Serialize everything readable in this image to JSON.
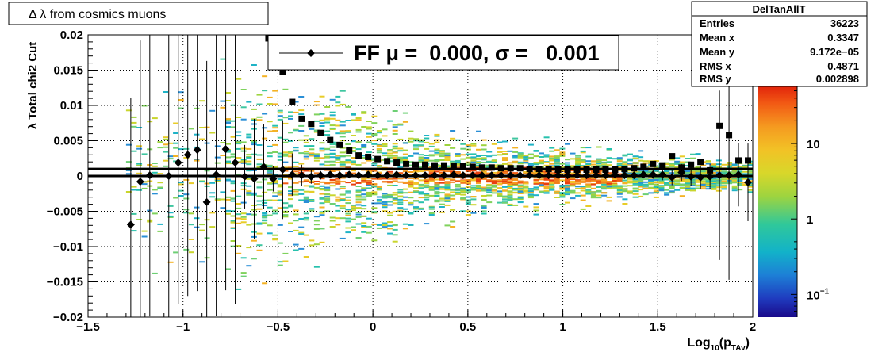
{
  "title": "Δ λ from cosmics muons",
  "stats_box": {
    "name": "DelTanAllT",
    "rows": [
      {
        "label": "Entries",
        "value": "36223"
      },
      {
        "label": "Mean x",
        "value": "0.3347"
      },
      {
        "label": "Mean y",
        "value": "9.172e−05"
      },
      {
        "label": "RMS x",
        "value": "0.4871"
      },
      {
        "label": "RMS y",
        "value": "0.002898"
      }
    ]
  },
  "legend": {
    "text": "FF μ =  0.000, σ =   0.001"
  },
  "colors": {
    "frame": "#000000",
    "square_markers": "#000000",
    "diamond_markers": "#000000",
    "grid": "#000000"
  },
  "chart_data": {
    "type": "heatmap",
    "title": "Δ λ from cosmics muons",
    "xlabel": "Log10(pTAv)",
    "xlabel_parts": {
      "main": "Log",
      "sub1": "10",
      "mid": "(p",
      "sub2": "TAv",
      "end": ")"
    },
    "ylabel": "λ  Total chi2 Cut",
    "xlim": [
      -1.5,
      2.0
    ],
    "ylim": [
      -0.02,
      0.02
    ],
    "x_ticks": [
      -1.5,
      -1.0,
      -0.5,
      0.0,
      0.5,
      1.0,
      1.5,
      2.0
    ],
    "x_tick_labels": [
      "−1.5",
      "−1",
      "−0.5",
      "0",
      "0.5",
      "1",
      "1.5",
      "2"
    ],
    "y_ticks": [
      -0.02,
      -0.015,
      -0.01,
      -0.005,
      0.0,
      0.005,
      0.01,
      0.015,
      0.02
    ],
    "y_tick_labels": [
      "−0.02",
      "−0.015",
      "−0.01",
      "−0.005",
      "0",
      "0.005",
      "0.01",
      "0.015",
      "0.02"
    ],
    "grid": true,
    "colorbar": {
      "scale": "log",
      "range": [
        0.05,
        60
      ],
      "tick_values": [
        0.1,
        1,
        10
      ],
      "tick_labels": [
        {
          "base": "10",
          "exp": "−1"
        },
        {
          "base": "1",
          "exp": ""
        },
        {
          "base": "10",
          "exp": ""
        }
      ]
    },
    "fit_lines": [
      0.001,
      0.0
    ],
    "rms_profile": [
      {
        "x": -0.55,
        "y": 0.0195
      },
      {
        "x": -0.475,
        "y": 0.0148
      },
      {
        "x": -0.425,
        "y": 0.0105
      },
      {
        "x": -0.375,
        "y": 0.0081
      },
      {
        "x": -0.325,
        "y": 0.0074
      },
      {
        "x": -0.275,
        "y": 0.0061
      },
      {
        "x": -0.225,
        "y": 0.0051
      },
      {
        "x": -0.175,
        "y": 0.0044
      },
      {
        "x": -0.125,
        "y": 0.0036
      },
      {
        "x": -0.075,
        "y": 0.0029
      },
      {
        "x": -0.025,
        "y": 0.0027
      },
      {
        "x": 0.025,
        "y": 0.0024
      },
      {
        "x": 0.075,
        "y": 0.0021
      },
      {
        "x": 0.125,
        "y": 0.0019
      },
      {
        "x": 0.175,
        "y": 0.0017
      },
      {
        "x": 0.225,
        "y": 0.0016
      },
      {
        "x": 0.275,
        "y": 0.0016
      },
      {
        "x": 0.325,
        "y": 0.0015
      },
      {
        "x": 0.375,
        "y": 0.0015
      },
      {
        "x": 0.425,
        "y": 0.0014
      },
      {
        "x": 0.475,
        "y": 0.0014
      },
      {
        "x": 0.525,
        "y": 0.0013
      },
      {
        "x": 0.575,
        "y": 0.0012
      },
      {
        "x": 0.625,
        "y": 0.0012
      },
      {
        "x": 0.675,
        "y": 0.0011
      },
      {
        "x": 0.725,
        "y": 0.0011
      },
      {
        "x": 0.775,
        "y": 0.0011
      },
      {
        "x": 0.825,
        "y": 0.001
      },
      {
        "x": 0.875,
        "y": 0.001
      },
      {
        "x": 0.925,
        "y": 0.001
      },
      {
        "x": 0.975,
        "y": 0.0009
      },
      {
        "x": 1.025,
        "y": 0.0009
      },
      {
        "x": 1.075,
        "y": 0.0009
      },
      {
        "x": 1.125,
        "y": 0.0009
      },
      {
        "x": 1.175,
        "y": 0.0009
      },
      {
        "x": 1.225,
        "y": 0.0009
      },
      {
        "x": 1.275,
        "y": 0.0009
      },
      {
        "x": 1.325,
        "y": 0.001
      },
      {
        "x": 1.375,
        "y": 0.0011
      },
      {
        "x": 1.425,
        "y": 0.0013
      },
      {
        "x": 1.475,
        "y": 0.0017
      },
      {
        "x": 1.525,
        "y": 0.0015
      },
      {
        "x": 1.575,
        "y": 0.0028
      },
      {
        "x": 1.625,
        "y": 0.0012
      },
      {
        "x": 1.675,
        "y": 0.0016
      },
      {
        "x": 1.725,
        "y": 0.002
      },
      {
        "x": 1.775,
        "y": 0.0008
      },
      {
        "x": 1.825,
        "y": 0.0071
      },
      {
        "x": 1.875,
        "y": 0.0058
      },
      {
        "x": 1.925,
        "y": 0.0022
      },
      {
        "x": 1.975,
        "y": 0.0022
      }
    ],
    "mean_profile": [
      {
        "x": -1.275,
        "y": -0.0069,
        "err": 0.018
      },
      {
        "x": -1.225,
        "y": -0.0008,
        "err": 0.02
      },
      {
        "x": -1.175,
        "y": 0.0001,
        "err": 0.02
      },
      {
        "x": -1.075,
        "y": 0.0,
        "err": 0.02
      },
      {
        "x": -1.025,
        "y": 0.0019,
        "err": 0.02
      },
      {
        "x": -0.975,
        "y": 0.003,
        "err": 0.02
      },
      {
        "x": -0.925,
        "y": 0.0037,
        "err": 0.02
      },
      {
        "x": -0.875,
        "y": -0.0037,
        "err": 0.02
      },
      {
        "x": -0.825,
        "y": 0.0002,
        "err": 0.02
      },
      {
        "x": -0.775,
        "y": 0.0038,
        "err": 0.02
      },
      {
        "x": -0.725,
        "y": 0.0019,
        "err": 0.02
      },
      {
        "x": -0.675,
        "y": -0.0001,
        "err": 0.0045
      },
      {
        "x": -0.625,
        "y": -0.0004,
        "err": 0.0085
      },
      {
        "x": -0.575,
        "y": 0.0013,
        "err": 0.006
      },
      {
        "x": -0.525,
        "y": -0.0004,
        "err": 0.0018
      },
      {
        "x": -0.475,
        "y": 0.0009,
        "err": 0.007
      },
      {
        "x": -0.425,
        "y": 0.0002,
        "err": 0.003
      },
      {
        "x": -0.375,
        "y": 0.0001,
        "err": 0.0015
      },
      {
        "x": -0.325,
        "y": -0.0001,
        "err": 0.001
      },
      {
        "x": -0.275,
        "y": 0.0001,
        "err": 0.0006
      },
      {
        "x": -0.225,
        "y": 0.0002,
        "err": 0.0004
      },
      {
        "x": -0.175,
        "y": 0.0001,
        "err": 0.0003
      },
      {
        "x": -0.125,
        "y": 0.0002,
        "err": 0.0002
      },
      {
        "x": -0.075,
        "y": 0.0001,
        "err": 0.0002
      },
      {
        "x": -0.025,
        "y": 0.0002,
        "err": 0.0002
      },
      {
        "x": 0.025,
        "y": 0.0001,
        "err": 0.0002
      },
      {
        "x": 0.075,
        "y": 0.0001,
        "err": 0.0002
      },
      {
        "x": 0.125,
        "y": 0.0002,
        "err": 0.0002
      },
      {
        "x": 0.175,
        "y": 0.0001,
        "err": 0.0002
      },
      {
        "x": 0.225,
        "y": 0.0001,
        "err": 0.0002
      },
      {
        "x": 0.275,
        "y": 0.0001,
        "err": 0.0002
      },
      {
        "x": 0.325,
        "y": 0.0001,
        "err": 0.0002
      },
      {
        "x": 0.375,
        "y": 0.0001,
        "err": 0.0002
      },
      {
        "x": 0.425,
        "y": 0.0002,
        "err": 0.0002
      },
      {
        "x": 0.475,
        "y": 0.0001,
        "err": 0.0002
      },
      {
        "x": 0.525,
        "y": 0.0001,
        "err": 0.0002
      },
      {
        "x": 0.575,
        "y": 0.0001,
        "err": 0.0002
      },
      {
        "x": 0.625,
        "y": 0.0001,
        "err": 0.0002
      },
      {
        "x": 0.675,
        "y": 0.0001,
        "err": 0.0002
      },
      {
        "x": 0.725,
        "y": 0.0001,
        "err": 0.0002
      },
      {
        "x": 0.775,
        "y": 0.0001,
        "err": 0.0002
      },
      {
        "x": 0.825,
        "y": 0.0001,
        "err": 0.0002
      },
      {
        "x": 0.875,
        "y": 0.0001,
        "err": 0.0002
      },
      {
        "x": 0.925,
        "y": 0.0001,
        "err": 0.0002
      },
      {
        "x": 0.975,
        "y": 0.0001,
        "err": 0.0002
      },
      {
        "x": 1.025,
        "y": 0.0001,
        "err": 0.0002
      },
      {
        "x": 1.075,
        "y": 0.0001,
        "err": 0.0002
      },
      {
        "x": 1.125,
        "y": 0.0001,
        "err": 0.0002
      },
      {
        "x": 1.175,
        "y": 0.0001,
        "err": 0.0003
      },
      {
        "x": 1.225,
        "y": 0.0001,
        "err": 0.0003
      },
      {
        "x": 1.275,
        "y": 0.0002,
        "err": 0.0003
      },
      {
        "x": 1.325,
        "y": 0.0001,
        "err": 0.0004
      },
      {
        "x": 1.375,
        "y": 0.0001,
        "err": 0.0005
      },
      {
        "x": 1.425,
        "y": 0.0002,
        "err": 0.0005
      },
      {
        "x": 1.475,
        "y": 0.0002,
        "err": 0.0006
      },
      {
        "x": 1.525,
        "y": 0.0002,
        "err": 0.0008
      },
      {
        "x": 1.575,
        "y": -0.0002,
        "err": 0.0011
      },
      {
        "x": 1.625,
        "y": 0.0005,
        "err": 0.0012
      },
      {
        "x": 1.675,
        "y": -0.0001,
        "err": 0.0013
      },
      {
        "x": 1.725,
        "y": -0.0002,
        "err": 0.0016
      },
      {
        "x": 1.775,
        "y": -0.0001,
        "err": 0.0018
      },
      {
        "x": 1.825,
        "y": 0.0001,
        "err": 0.012
      },
      {
        "x": 1.875,
        "y": 0.0001,
        "err": 0.0148
      },
      {
        "x": 1.925,
        "y": 0.0002,
        "err": 0.0045
      },
      {
        "x": 1.975,
        "y": -0.0009,
        "err": 0.0055
      }
    ]
  }
}
